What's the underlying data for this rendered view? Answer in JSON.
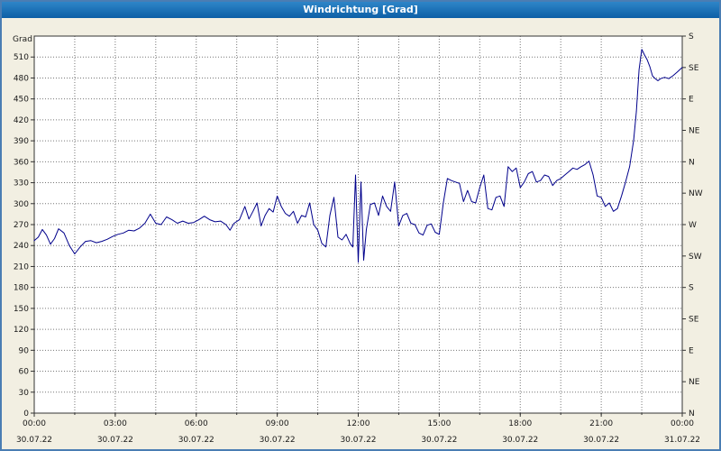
{
  "title": "Windrichtung [Grad]",
  "colors": {
    "background": "#f2efe2",
    "titlebar_top": "#2e85c8",
    "titlebar_bottom": "#0d5fa6",
    "window_border": "#4a7db3",
    "plot_background": "#ffffff",
    "grid": "#777777",
    "frame": "#333333",
    "axis_text": "#1a1a1a",
    "line": "#00008b"
  },
  "chart_data": {
    "type": "line",
    "title": "Windrichtung [Grad]",
    "ylabel": "Grad",
    "ylim": [
      0,
      540
    ],
    "xlim_hours": [
      0,
      24
    ],
    "grid": {
      "x_step_hours": 1.5,
      "y_step": 30,
      "style": "dotted"
    },
    "legend": "none",
    "y_left_ticks": [
      0,
      30,
      60,
      90,
      120,
      150,
      180,
      210,
      240,
      270,
      300,
      330,
      360,
      390,
      420,
      450,
      480,
      510
    ],
    "y_right_ticks": [
      {
        "value": 540,
        "label": "S"
      },
      {
        "value": 495,
        "label": "SE"
      },
      {
        "value": 450,
        "label": "E"
      },
      {
        "value": 405,
        "label": "NE"
      },
      {
        "value": 360,
        "label": "N"
      },
      {
        "value": 315,
        "label": "NW"
      },
      {
        "value": 270,
        "label": "W"
      },
      {
        "value": 225,
        "label": "SW"
      },
      {
        "value": 180,
        "label": "S"
      },
      {
        "value": 135,
        "label": "SE"
      },
      {
        "value": 90,
        "label": "E"
      },
      {
        "value": 45,
        "label": "NE"
      },
      {
        "value": 0,
        "label": "N"
      }
    ],
    "x_ticks": [
      {
        "hour": 0,
        "time": "00:00",
        "date": "30.07.22"
      },
      {
        "hour": 3,
        "time": "03:00",
        "date": "30.07.22"
      },
      {
        "hour": 6,
        "time": "06:00",
        "date": "30.07.22"
      },
      {
        "hour": 9,
        "time": "09:00",
        "date": "30.07.22"
      },
      {
        "hour": 12,
        "time": "12:00",
        "date": "30.07.22"
      },
      {
        "hour": 15,
        "time": "15:00",
        "date": "30.07.22"
      },
      {
        "hour": 18,
        "time": "18:00",
        "date": "30.07.22"
      },
      {
        "hour": 21,
        "time": "21:00",
        "date": "30.07.22"
      },
      {
        "hour": 24,
        "time": "00:00",
        "date": "31.07.22"
      }
    ],
    "series": [
      {
        "name": "Windrichtung",
        "color": "#00008b",
        "points": [
          [
            0,
            247
          ],
          [
            0.15,
            252
          ],
          [
            0.3,
            263
          ],
          [
            0.45,
            255
          ],
          [
            0.6,
            242
          ],
          [
            0.75,
            250
          ],
          [
            0.9,
            264
          ],
          [
            1.1,
            258
          ],
          [
            1.3,
            240
          ],
          [
            1.5,
            228
          ],
          [
            1.7,
            238
          ],
          [
            1.9,
            246
          ],
          [
            2.1,
            247
          ],
          [
            2.3,
            244
          ],
          [
            2.5,
            246
          ],
          [
            2.7,
            249
          ],
          [
            2.9,
            253
          ],
          [
            3.1,
            256
          ],
          [
            3.3,
            258
          ],
          [
            3.5,
            262
          ],
          [
            3.7,
            261
          ],
          [
            3.9,
            265
          ],
          [
            4.1,
            272
          ],
          [
            4.3,
            285
          ],
          [
            4.5,
            272
          ],
          [
            4.7,
            270
          ],
          [
            4.9,
            281
          ],
          [
            5.1,
            277
          ],
          [
            5.3,
            272
          ],
          [
            5.5,
            275
          ],
          [
            5.7,
            272
          ],
          [
            5.9,
            273
          ],
          [
            6.1,
            277
          ],
          [
            6.3,
            282
          ],
          [
            6.5,
            277
          ],
          [
            6.7,
            274
          ],
          [
            6.9,
            275
          ],
          [
            7.1,
            270
          ],
          [
            7.25,
            262
          ],
          [
            7.4,
            272
          ],
          [
            7.6,
            277
          ],
          [
            7.8,
            296
          ],
          [
            7.95,
            278
          ],
          [
            8.1,
            289
          ],
          [
            8.25,
            301
          ],
          [
            8.4,
            268
          ],
          [
            8.55,
            283
          ],
          [
            8.7,
            293
          ],
          [
            8.85,
            288
          ],
          [
            9,
            311
          ],
          [
            9.15,
            296
          ],
          [
            9.3,
            286
          ],
          [
            9.45,
            282
          ],
          [
            9.6,
            289
          ],
          [
            9.75,
            272
          ],
          [
            9.9,
            283
          ],
          [
            10.05,
            281
          ],
          [
            10.2,
            301
          ],
          [
            10.35,
            270
          ],
          [
            10.5,
            262
          ],
          [
            10.65,
            243
          ],
          [
            10.8,
            238
          ],
          [
            10.95,
            283
          ],
          [
            11.1,
            309
          ],
          [
            11.25,
            252
          ],
          [
            11.4,
            248
          ],
          [
            11.55,
            256
          ],
          [
            11.7,
            243
          ],
          [
            11.8,
            238
          ],
          [
            11.9,
            341
          ],
          [
            12,
            216
          ],
          [
            12.1,
            331
          ],
          [
            12.2,
            219
          ],
          [
            12.3,
            263
          ],
          [
            12.45,
            299
          ],
          [
            12.6,
            301
          ],
          [
            12.75,
            283
          ],
          [
            12.9,
            311
          ],
          [
            13.05,
            296
          ],
          [
            13.2,
            289
          ],
          [
            13.35,
            331
          ],
          [
            13.5,
            268
          ],
          [
            13.65,
            283
          ],
          [
            13.8,
            286
          ],
          [
            13.95,
            272
          ],
          [
            14.1,
            270
          ],
          [
            14.25,
            258
          ],
          [
            14.4,
            255
          ],
          [
            14.55,
            269
          ],
          [
            14.7,
            271
          ],
          [
            14.85,
            259
          ],
          [
            15,
            256
          ],
          [
            15.15,
            301
          ],
          [
            15.3,
            336
          ],
          [
            15.45,
            333
          ],
          [
            15.6,
            331
          ],
          [
            15.75,
            329
          ],
          [
            15.9,
            303
          ],
          [
            16.05,
            319
          ],
          [
            16.2,
            303
          ],
          [
            16.35,
            301
          ],
          [
            16.5,
            323
          ],
          [
            16.65,
            341
          ],
          [
            16.8,
            293
          ],
          [
            16.95,
            291
          ],
          [
            17.1,
            309
          ],
          [
            17.25,
            311
          ],
          [
            17.4,
            296
          ],
          [
            17.55,
            353
          ],
          [
            17.7,
            346
          ],
          [
            17.85,
            351
          ],
          [
            18,
            323
          ],
          [
            18.15,
            331
          ],
          [
            18.3,
            343
          ],
          [
            18.45,
            346
          ],
          [
            18.6,
            331
          ],
          [
            18.75,
            333
          ],
          [
            18.9,
            341
          ],
          [
            19.05,
            339
          ],
          [
            19.2,
            326
          ],
          [
            19.35,
            333
          ],
          [
            19.5,
            336
          ],
          [
            19.65,
            341
          ],
          [
            19.8,
            346
          ],
          [
            19.95,
            351
          ],
          [
            20.1,
            349
          ],
          [
            20.25,
            353
          ],
          [
            20.4,
            356
          ],
          [
            20.55,
            361
          ],
          [
            20.7,
            341
          ],
          [
            20.85,
            311
          ],
          [
            21,
            309
          ],
          [
            21.15,
            296
          ],
          [
            21.3,
            301
          ],
          [
            21.45,
            289
          ],
          [
            21.6,
            293
          ],
          [
            21.75,
            311
          ],
          [
            21.9,
            331
          ],
          [
            22.05,
            353
          ],
          [
            22.2,
            391
          ],
          [
            22.3,
            432
          ],
          [
            22.4,
            492
          ],
          [
            22.5,
            521
          ],
          [
            22.6,
            513
          ],
          [
            22.7,
            506
          ],
          [
            22.8,
            496
          ],
          [
            22.9,
            483
          ],
          [
            23,
            479
          ],
          [
            23.1,
            476
          ],
          [
            23.2,
            479
          ],
          [
            23.35,
            481
          ],
          [
            23.5,
            479
          ],
          [
            23.65,
            483
          ],
          [
            23.8,
            488
          ],
          [
            24,
            495
          ]
        ]
      }
    ]
  }
}
